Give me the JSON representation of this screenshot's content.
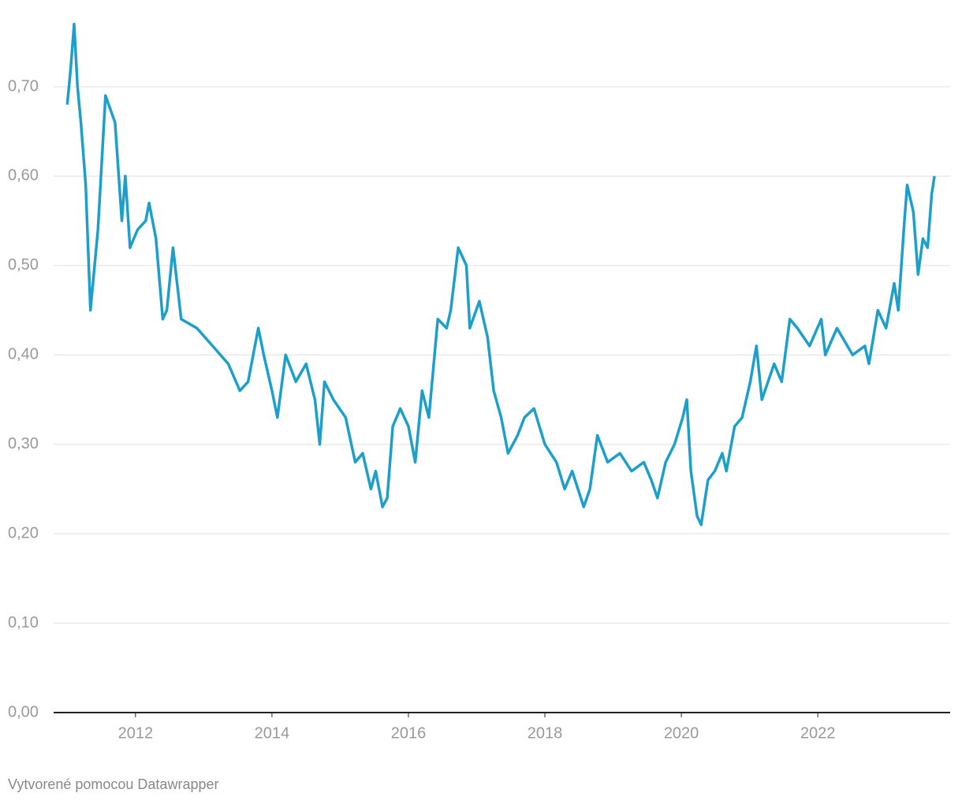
{
  "chart_data": {
    "type": "line",
    "x": [
      2011.0,
      2011.05,
      2011.1,
      2011.15,
      2011.2,
      2011.27,
      2011.34,
      2011.45,
      2011.56,
      2011.7,
      2011.8,
      2011.85,
      2011.92,
      2012.03,
      2012.15,
      2012.2,
      2012.3,
      2012.4,
      2012.46,
      2012.55,
      2012.67,
      2012.9,
      2013.13,
      2013.36,
      2013.53,
      2013.65,
      2013.8,
      2013.88,
      2014.0,
      2014.08,
      2014.2,
      2014.35,
      2014.5,
      2014.63,
      2014.7,
      2014.77,
      2014.9,
      2015.08,
      2015.22,
      2015.33,
      2015.45,
      2015.52,
      2015.62,
      2015.69,
      2015.77,
      2015.88,
      2016.0,
      2016.1,
      2016.2,
      2016.3,
      2016.43,
      2016.56,
      2016.62,
      2016.73,
      2016.85,
      2016.9,
      2017.04,
      2017.16,
      2017.25,
      2017.36,
      2017.46,
      2017.6,
      2017.7,
      2017.84,
      2018.0,
      2018.17,
      2018.29,
      2018.4,
      2018.57,
      2018.66,
      2018.77,
      2018.92,
      2019.1,
      2019.27,
      2019.45,
      2019.56,
      2019.65,
      2019.77,
      2019.9,
      2020.02,
      2020.08,
      2020.14,
      2020.23,
      2020.29,
      2020.39,
      2020.49,
      2020.6,
      2020.66,
      2020.78,
      2020.89,
      2021.01,
      2021.1,
      2021.18,
      2021.36,
      2021.47,
      2021.59,
      2021.7,
      2021.88,
      2022.05,
      2022.11,
      2022.28,
      2022.51,
      2022.69,
      2022.75,
      2022.88,
      2023.0,
      2023.12,
      2023.18,
      2023.27,
      2023.31,
      2023.4,
      2023.47,
      2023.54,
      2023.61,
      2023.67,
      2023.71
    ],
    "series": [
      {
        "name": "value",
        "color": "#1d9fcc",
        "values": [
          0.68,
          0.72,
          0.77,
          0.7,
          0.66,
          0.59,
          0.45,
          0.54,
          0.69,
          0.66,
          0.55,
          0.6,
          0.52,
          0.54,
          0.55,
          0.57,
          0.53,
          0.44,
          0.45,
          0.52,
          0.44,
          0.43,
          0.41,
          0.39,
          0.36,
          0.37,
          0.43,
          0.4,
          0.36,
          0.33,
          0.4,
          0.37,
          0.39,
          0.35,
          0.3,
          0.37,
          0.35,
          0.33,
          0.28,
          0.29,
          0.25,
          0.27,
          0.23,
          0.24,
          0.32,
          0.34,
          0.32,
          0.28,
          0.36,
          0.33,
          0.44,
          0.43,
          0.45,
          0.52,
          0.5,
          0.43,
          0.46,
          0.42,
          0.36,
          0.33,
          0.29,
          0.31,
          0.33,
          0.34,
          0.3,
          0.28,
          0.25,
          0.27,
          0.23,
          0.25,
          0.31,
          0.28,
          0.29,
          0.27,
          0.28,
          0.26,
          0.24,
          0.28,
          0.3,
          0.33,
          0.35,
          0.27,
          0.22,
          0.21,
          0.26,
          0.27,
          0.29,
          0.27,
          0.32,
          0.33,
          0.37,
          0.41,
          0.35,
          0.39,
          0.37,
          0.44,
          0.43,
          0.41,
          0.44,
          0.4,
          0.43,
          0.4,
          0.41,
          0.39,
          0.45,
          0.43,
          0.48,
          0.45,
          0.55,
          0.59,
          0.56,
          0.49,
          0.53,
          0.52,
          0.58,
          0.6
        ]
      }
    ],
    "xlim": [
      2010.8,
      2023.94
    ],
    "xticks": [
      2012,
      2014,
      2016,
      2018,
      2020,
      2022
    ],
    "ylim": [
      0,
      0.7
    ],
    "yticks": [
      {
        "value": 0,
        "label": "0,00"
      },
      {
        "value": 0.1,
        "label": "0,10"
      },
      {
        "value": 0.2,
        "label": "0,20"
      },
      {
        "value": 0.3,
        "label": "0,30"
      },
      {
        "value": 0.4,
        "label": "0,40"
      },
      {
        "value": 0.5,
        "label": "0,50"
      },
      {
        "value": 0.6,
        "label": "0,60"
      },
      {
        "value": 0.7,
        "label": "0,70"
      }
    ],
    "grid": true,
    "footer": "Vytvorené pomocou Datawrapper"
  }
}
